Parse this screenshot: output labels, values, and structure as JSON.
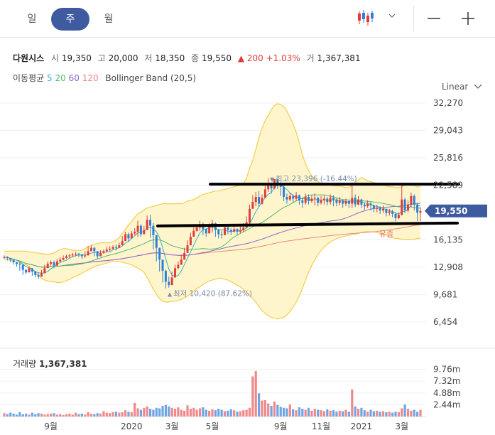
{
  "period_tabs": [
    {
      "label": "일",
      "active": false
    },
    {
      "label": "주",
      "active": true
    },
    {
      "label": "월",
      "active": false
    }
  ],
  "window_buttons": {
    "minimize_icon": "minus-icon",
    "expand_icon": "plus-icon",
    "chart_type_icon": "candlestick-icon"
  },
  "stock": {
    "name": "다원시스",
    "open_label": "시",
    "open": "19,350",
    "high_label": "고",
    "high": "20,000",
    "low_label": "저",
    "low": "18,350",
    "close_label": "종",
    "close": "19,550",
    "change_arrow": "▲",
    "change": "200",
    "change_pct": "+1.03%",
    "volume_label": "거",
    "volume": "1,367,381"
  },
  "indicators": {
    "ma_label": "이동평균",
    "ma_periods": [
      {
        "label": "5",
        "color": "#35b0c9"
      },
      {
        "label": "20",
        "color": "#55b96b"
      },
      {
        "label": "60",
        "color": "#8a67cf"
      },
      {
        "label": "120",
        "color": "#e8897d"
      }
    ],
    "bollinger_label": "Bollinger Band (20,5)"
  },
  "scale_mode": "Linear",
  "colors": {
    "up": "#e03c3c",
    "down": "#2f7fd4",
    "band_fill": "#fff5cc",
    "band_line": "#f2cf4b",
    "accent": "#3f5ba0"
  },
  "chart_data": {
    "type": "candlestick",
    "x_tick_labels": [
      "9월",
      "2020",
      "3월",
      "5월",
      "9월",
      "11월",
      "2021",
      "3월"
    ],
    "y_ticks": [
      "32,270",
      "29,043",
      "25,816",
      "22,589",
      "16,135",
      "12,908",
      "9,681",
      "6,454"
    ],
    "y_range": [
      6454,
      32270
    ],
    "current_price_label": "19,550",
    "current_price": 19550,
    "annotations": {
      "high": {
        "marker": "▼",
        "text": "최고 23,396 (-16.44%)",
        "value": 23396
      },
      "low": {
        "marker": "▲",
        "text": "최저 10,420 (87.62%)",
        "value": 10420
      },
      "event": "유증"
    },
    "resistance_line": 22700,
    "support_line": 17950,
    "volume_title": "거래량",
    "volume_value": "1,367,381",
    "volume_ticks": [
      "9.76m",
      "7.32m",
      "4.88m",
      "2.44m"
    ],
    "volume_range": [
      0,
      10000000
    ],
    "closes": [
      14100,
      14000,
      13800,
      13500,
      13300,
      13200,
      12600,
      12300,
      12800,
      12400,
      12000,
      11800,
      12200,
      12800,
      13300,
      13500,
      13100,
      13600,
      13800,
      14000,
      14200,
      14300,
      14400,
      14500,
      14400,
      14200,
      14300,
      14800,
      15200,
      14800,
      14200,
      14600,
      14800,
      15000,
      15100,
      15300,
      15200,
      15500,
      16000,
      16800,
      16300,
      16900,
      17100,
      17800,
      16800,
      17300,
      18500,
      17800,
      16700,
      15200,
      13800,
      12500,
      11200,
      10800,
      11700,
      12800,
      13200,
      13800,
      14600,
      15500,
      16500,
      17200,
      17600,
      18000,
      17400,
      16900,
      17700,
      18100,
      17300,
      16800,
      16700,
      17600,
      17300,
      17100,
      17400,
      17100,
      17300,
      17600,
      18200,
      19800,
      20600,
      21200,
      20400,
      21100,
      22100,
      22800,
      22200,
      23300,
      22600,
      22400,
      21200,
      20900,
      21300,
      21000,
      21400,
      20800,
      20500,
      21200,
      20700,
      21000,
      21100,
      20500,
      20800,
      21000,
      20600,
      21100,
      20900,
      20500,
      20800,
      20400,
      20700,
      20400,
      21100,
      20300,
      20900,
      20300,
      20100,
      20400,
      20200,
      19800,
      19900,
      19600,
      19800,
      19300,
      19500,
      19200,
      18700,
      19100,
      20900,
      19600,
      20300,
      21300,
      20300,
      19350,
      19550
    ],
    "highs": [
      14300,
      14200,
      14000,
      13800,
      13500,
      13500,
      13300,
      12700,
      13000,
      12800,
      12400,
      12300,
      12600,
      13200,
      13600,
      13700,
      13700,
      13900,
      14100,
      14300,
      14400,
      14500,
      14600,
      14700,
      14600,
      14500,
      14800,
      15400,
      15500,
      15300,
      14800,
      14900,
      15000,
      15300,
      15400,
      15500,
      15600,
      15800,
      16600,
      17100,
      17000,
      17200,
      17500,
      18400,
      18000,
      17800,
      19000,
      19100,
      18100,
      16700,
      15200,
      13800,
      12600,
      11800,
      12400,
      13200,
      13600,
      14400,
      15200,
      16100,
      17000,
      17600,
      17900,
      18400,
      18200,
      17500,
      18100,
      18500,
      18200,
      17400,
      17200,
      18000,
      17900,
      17500,
      17700,
      17500,
      17800,
      18100,
      18900,
      20300,
      21400,
      21800,
      21900,
      21500,
      22600,
      23396,
      22900,
      23300,
      23300,
      22900,
      22600,
      21600,
      21700,
      21500,
      21800,
      21500,
      21100,
      21600,
      21500,
      21400,
      21600,
      21200,
      21300,
      21400,
      21200,
      21500,
      21400,
      21100,
      21200,
      20900,
      21000,
      20900,
      22900,
      21500,
      21300,
      21000,
      20500,
      20800,
      20600,
      20300,
      20300,
      20100,
      20200,
      19800,
      19800,
      19700,
      19400,
      19400,
      22800,
      21100,
      20800,
      21700,
      21500,
      20500,
      20000
    ],
    "lows": [
      13900,
      13700,
      13500,
      13200,
      13000,
      12500,
      12000,
      12100,
      12300,
      11900,
      11700,
      11500,
      11800,
      12500,
      13000,
      13100,
      12800,
      13300,
      13500,
      13700,
      13900,
      14000,
      14100,
      14200,
      14100,
      13900,
      14000,
      14500,
      14800,
      14200,
      13900,
      14300,
      14500,
      14700,
      14800,
      15000,
      14900,
      15200,
      15700,
      16000,
      15900,
      16600,
      16700,
      16500,
      16500,
      16900,
      17700,
      16400,
      15000,
      13600,
      12400,
      11100,
      10420,
      10500,
      10800,
      12300,
      12700,
      13500,
      14300,
      15100,
      16100,
      16700,
      17100,
      17200,
      16700,
      16500,
      17200,
      17000,
      16500,
      16300,
      16300,
      16900,
      16800,
      16700,
      17000,
      16700,
      16900,
      17100,
      17500,
      18000,
      20000,
      20100,
      20000,
      20300,
      21500,
      21800,
      21600,
      22100,
      22100,
      21300,
      20700,
      20400,
      20700,
      20500,
      20700,
      20300,
      19900,
      20300,
      20300,
      20500,
      20200,
      20100,
      20300,
      20300,
      20200,
      20300,
      20100,
      20100,
      20200,
      19900,
      20100,
      19900,
      19900,
      20000,
      20200,
      19900,
      19700,
      19900,
      19600,
      19400,
      19400,
      19200,
      19300,
      18900,
      19000,
      18800,
      18300,
      18600,
      19000,
      19300,
      19400,
      20000,
      19600,
      18350,
      18350
    ],
    "upper_band": [
      14800,
      14800,
      14800,
      14800,
      14800,
      14800,
      14800,
      14800,
      14700,
      14700,
      14600,
      14600,
      14500,
      14500,
      14400,
      14500,
      14600,
      14800,
      15000,
      15100,
      15100,
      15000,
      14900,
      14900,
      14900,
      14900,
      15100,
      15300,
      15500,
      15600,
      15700,
      15800,
      15800,
      15800,
      15800,
      15900,
      16100,
      16400,
      16900,
      17400,
      17900,
      18300,
      18800,
      19200,
      19400,
      19700,
      19900,
      20000,
      20100,
      20200,
      20300,
      20400,
      20400,
      20400,
      20400,
      20400,
      20400,
      20400,
      20500,
      20700,
      20800,
      20900,
      21100,
      21300,
      21500,
      21600,
      21700,
      21800,
      21900,
      21900,
      22000,
      22100,
      22200,
      22300,
      22400,
      22500,
      22600,
      22800,
      23400,
      24600,
      25500,
      26800,
      28200,
      29300,
      30200,
      30800,
      31500,
      32000,
      32200,
      32100,
      31900,
      31300,
      30600,
      29800,
      28800,
      27600,
      26200,
      25100,
      24300,
      23700,
      23300,
      23000,
      22800,
      22700,
      22600,
      22600,
      22500,
      22500,
      22500,
      22400,
      22300,
      22300,
      22600,
      22800,
      23200,
      23500,
      23300,
      23100,
      23000,
      22900,
      22800,
      22700,
      22600,
      22500,
      22400,
      22400,
      22300,
      22300,
      22400,
      22600,
      22700,
      22600,
      22600,
      22400,
      22400
    ],
    "lower_band": [
      13800,
      13800,
      13700,
      13600,
      13500,
      13400,
      13300,
      13200,
      13000,
      12700,
      12200,
      11900,
      11600,
      11400,
      11300,
      11200,
      11200,
      11100,
      11100,
      11200,
      11300,
      11500,
      11700,
      11800,
      12000,
      12200,
      12400,
      12600,
      12800,
      13000,
      13100,
      13200,
      13300,
      13400,
      13500,
      13600,
      13600,
      13600,
      13500,
      13400,
      13300,
      13200,
      13000,
      12800,
      12600,
      12300,
      11700,
      11000,
      10300,
      9700,
      9200,
      8900,
      8800,
      8800,
      8900,
      8900,
      9000,
      9100,
      9300,
      9500,
      9800,
      10100,
      10400,
      10600,
      10900,
      11100,
      11300,
      11400,
      11500,
      11600,
      11600,
      11500,
      11400,
      11200,
      11000,
      10800,
      10600,
      10300,
      10000,
      9600,
      9200,
      8800,
      8300,
      7800,
      7500,
      7200,
      7000,
      6900,
      6800,
      6900,
      7000,
      7300,
      7700,
      8200,
      8800,
      9500,
      10400,
      11400,
      12300,
      13100,
      13800,
      14400,
      14900,
      15300,
      15600,
      15900,
      16100,
      16300,
      16400,
      16500,
      16600,
      16700,
      16800,
      16800,
      16900,
      17000,
      17100,
      17100,
      17100,
      17100,
      17000,
      16900,
      16800,
      16700,
      16500,
      16400,
      16300,
      16300,
      16200,
      16200,
      16200,
      16200,
      16200,
      16300,
      16300
    ],
    "volumes": [
      0.7,
      0.5,
      0.8,
      0.6,
      0.4,
      0.9,
      0.5,
      0.6,
      0.4,
      0.8,
      0.5,
      0.7,
      0.6,
      0.4,
      0.5,
      0.6,
      0.7,
      0.4,
      0.5,
      0.3,
      0.5,
      0.6,
      0.4,
      0.8,
      0.5,
      0.6,
      0.4,
      0.9,
      0.6,
      0.5,
      0.7,
      0.6,
      1.1,
      0.8,
      0.7,
      0.9,
      1.0,
      0.8,
      0.9,
      1.3,
      1.0,
      0.9,
      2.8,
      1.7,
      1.4,
      1.8,
      2.1,
      1.6,
      1.4,
      1.8,
      1.7,
      2.2,
      2.4,
      2.1,
      1.8,
      1.6,
      1.9,
      1.4,
      1.2,
      2.3,
      1.6,
      1.8,
      1.4,
      1.7,
      1.9,
      1.4,
      1.2,
      1.5,
      1.3,
      1.6,
      1.4,
      1.1,
      1.2,
      1.5,
      1.3,
      1.0,
      1.1,
      1.3,
      1.4,
      1.8,
      8.3,
      9.4,
      4.8,
      3.3,
      3.4,
      2.7,
      2.2,
      3.1,
      2.4,
      2.0,
      1.8,
      1.7,
      2.5,
      1.5,
      1.3,
      1.9,
      1.6,
      1.4,
      1.8,
      1.2,
      1.6,
      1.4,
      1.3,
      1.1,
      1.5,
      1.2,
      1.3,
      1.0,
      1.2,
      1.1,
      1.4,
      1.0,
      5.6,
      2.1,
      1.6,
      1.8,
      1.3,
      1.0,
      1.4,
      1.1,
      1.2,
      1.0,
      1.1,
      0.9,
      1.0,
      0.8,
      1.0,
      0.9,
      1.7,
      2.5,
      1.6,
      1.2,
      1.4,
      1.0,
      1.4
    ]
  }
}
